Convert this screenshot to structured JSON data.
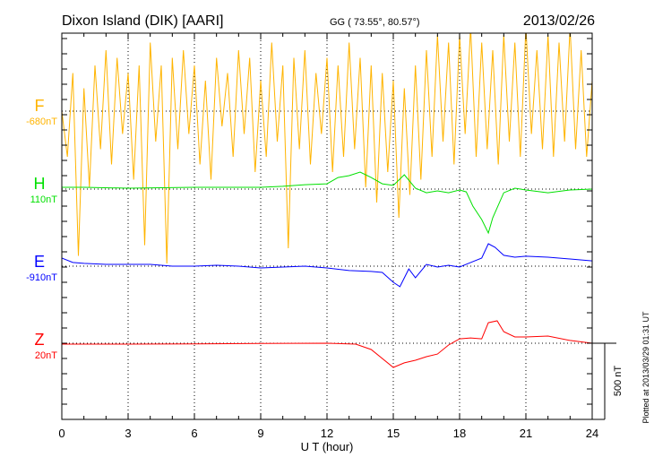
{
  "header": {
    "station": "Dixon Island (DIK)  [AARI]",
    "coords": "GG ( 73.55°,  80.57°)",
    "date": "2013/02/26"
  },
  "chart_data": {
    "type": "line",
    "xlabel": "U T (hour)",
    "xlim": [
      0,
      24
    ],
    "xticks": [
      "0",
      "3",
      "6",
      "9",
      "12",
      "15",
      "18",
      "21",
      "24"
    ],
    "scale_bar": "500 nT",
    "footer_note": "Plotted at 2013/03/29 01:31  UT",
    "grid": "dotted, every 3 hours and at each component baseline",
    "series": [
      {
        "name": "F",
        "baseline_label": "-680nT",
        "color": "#ffb400",
        "x_step_hours": 0.25,
        "values": [
          0,
          -300,
          250,
          -950,
          150,
          -500,
          300,
          -250,
          400,
          -350,
          350,
          -150,
          250,
          -450,
          300,
          -880,
          450,
          -200,
          300,
          -1000,
          350,
          -250,
          400,
          -150,
          300,
          -350,
          200,
          -450,
          350,
          -100,
          250,
          -300,
          400,
          -150,
          350,
          -400,
          200,
          -300,
          450,
          -200,
          300,
          -900,
          350,
          -250,
          400,
          -350,
          250,
          -150,
          350,
          -400,
          300,
          -300,
          450,
          -250,
          350,
          -500,
          300,
          -600,
          250,
          -400,
          200,
          -700,
          150,
          -550,
          300,
          -450,
          400,
          -300,
          500,
          -200,
          450,
          -350,
          500,
          -150,
          550,
          -300,
          450,
          -250,
          400,
          -350,
          500,
          -200,
          450,
          -300,
          550,
          -150,
          400,
          -250,
          500,
          -300,
          450,
          -200,
          550,
          -250,
          400,
          -300,
          200
        ]
      },
      {
        "name": "H",
        "baseline_label": "110nT",
        "color": "#00e000",
        "x": [
          0,
          1,
          3,
          6,
          9,
          10,
          11,
          12,
          12.5,
          13,
          13.5,
          14,
          14.5,
          15,
          15.5,
          16,
          16.5,
          17,
          17.5,
          18,
          18.3,
          18.6,
          19,
          19.3,
          19.5,
          20,
          20.5,
          21,
          22,
          23,
          24
        ],
        "values": [
          12,
          12,
          6,
          12,
          12,
          18,
          29,
          35,
          76,
          88,
          112,
          76,
          35,
          24,
          94,
          6,
          -24,
          -12,
          -24,
          -6,
          -18,
          -112,
          -200,
          -288,
          -188,
          -24,
          6,
          -6,
          -24,
          -6,
          0
        ]
      },
      {
        "name": "E",
        "baseline_label": "-910nT",
        "color": "#0000ff",
        "x": [
          0,
          0.5,
          1,
          2,
          3,
          4,
          5,
          6,
          7,
          8,
          9,
          10,
          11,
          12,
          13,
          14,
          14.5,
          15,
          15.3,
          15.7,
          16,
          16.5,
          17,
          17.5,
          18,
          18.5,
          19,
          19.3,
          19.6,
          20,
          20.5,
          21,
          22,
          23,
          24
        ],
        "values": [
          53,
          24,
          18,
          12,
          12,
          12,
          0,
          0,
          6,
          0,
          -12,
          -6,
          0,
          -12,
          -29,
          -35,
          -41,
          -106,
          -135,
          -18,
          -76,
          12,
          -6,
          6,
          -6,
          24,
          53,
          147,
          124,
          71,
          59,
          65,
          59,
          47,
          35
        ]
      },
      {
        "name": "Z",
        "baseline_label": "20nT",
        "color": "#ff0000",
        "x": [
          0,
          3,
          6,
          9,
          12,
          13.3,
          14,
          15,
          15.5,
          16,
          16.5,
          17,
          17.5,
          18,
          18.5,
          19,
          19.3,
          19.7,
          20,
          20.5,
          21,
          22,
          23,
          24
        ],
        "values": [
          -6,
          -6,
          -4,
          -2,
          0,
          -6,
          -41,
          -159,
          -129,
          -112,
          -88,
          -71,
          -12,
          29,
          35,
          29,
          135,
          147,
          76,
          41,
          41,
          47,
          18,
          0
        ]
      }
    ]
  }
}
